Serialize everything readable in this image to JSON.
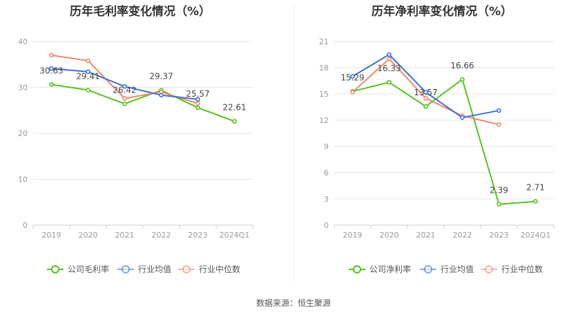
{
  "source_text": "数据来源：恒生聚源",
  "chart_data": [
    {
      "type": "line",
      "title": "历年毛利率变化情况（%）",
      "categories": [
        "2019",
        "2020",
        "2021",
        "2022",
        "2023",
        "2024Q1"
      ],
      "ylim": [
        0,
        40
      ],
      "yticks": [
        0,
        10,
        20,
        30,
        40
      ],
      "grid": true,
      "legend_position": "bottom",
      "series": [
        {
          "name": "公司毛利率",
          "color": "#52c41a",
          "values": [
            30.63,
            29.41,
            26.42,
            29.37,
            25.57,
            22.61
          ],
          "labels": [
            "30.63",
            "29.41",
            "26.42",
            "29.37",
            "25.57",
            "22.61"
          ]
        },
        {
          "name": "行业均值",
          "color": "#3b6fd8",
          "values": [
            34.1,
            33.4,
            30.2,
            28.3,
            27.4,
            null
          ]
        },
        {
          "name": "行业中位数",
          "color": "#f0866a",
          "values": [
            37.0,
            35.8,
            27.6,
            29.0,
            26.5,
            null
          ]
        }
      ]
    },
    {
      "type": "line",
      "title": "历年净利率变化情况（%）",
      "categories": [
        "2019",
        "2020",
        "2021",
        "2022",
        "2023",
        "2024Q1"
      ],
      "ylim": [
        0,
        21
      ],
      "yticks": [
        0,
        3,
        6,
        9,
        12,
        15,
        18,
        21
      ],
      "grid": true,
      "legend_position": "bottom",
      "series": [
        {
          "name": "公司净利率",
          "color": "#52c41a",
          "values": [
            15.29,
            16.33,
            13.57,
            16.66,
            2.39,
            2.71
          ],
          "labels": [
            "15.29",
            "16.33",
            "13.57",
            "16.66",
            "2.39",
            "2.71"
          ]
        },
        {
          "name": "行业均值",
          "color": "#3b6fd8",
          "values": [
            17.0,
            19.5,
            15.2,
            12.3,
            13.1,
            null
          ]
        },
        {
          "name": "行业中位数",
          "color": "#f0866a",
          "values": [
            15.2,
            19.0,
            14.5,
            12.5,
            11.5,
            null
          ]
        }
      ]
    }
  ]
}
